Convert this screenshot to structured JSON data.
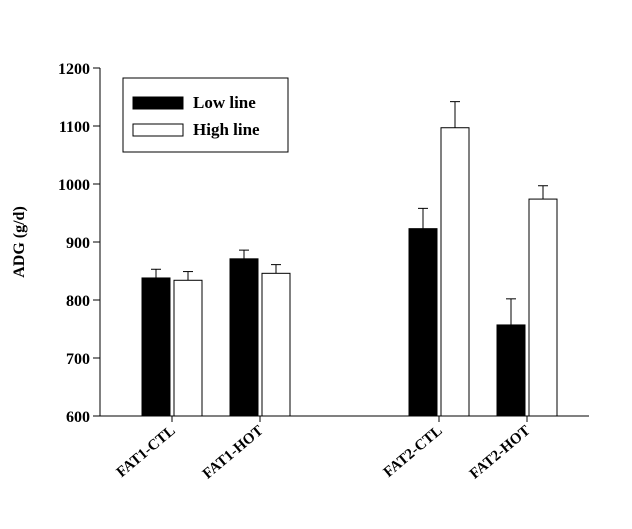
{
  "chart_data": {
    "type": "bar",
    "title": "",
    "xlabel": "",
    "ylabel": "ADG (g/d)",
    "ylim": [
      600,
      1200
    ],
    "yticks": [
      600,
      700,
      800,
      900,
      1000,
      1100,
      1200
    ],
    "grid": false,
    "legend_position": "top-left",
    "categories": [
      "FAT1-CTL",
      "FAT1-HOT",
      "FAT2-CTL",
      "FAT2-HOT"
    ],
    "series": [
      {
        "name": "Low line",
        "fill": "#000000",
        "values": [
          838,
          871,
          923,
          757
        ],
        "errors": [
          15,
          15,
          35,
          45
        ]
      },
      {
        "name": "High line",
        "fill": "#ffffff",
        "values": [
          834,
          846,
          1097,
          974
        ],
        "errors": [
          15,
          15,
          45,
          23
        ]
      }
    ]
  }
}
